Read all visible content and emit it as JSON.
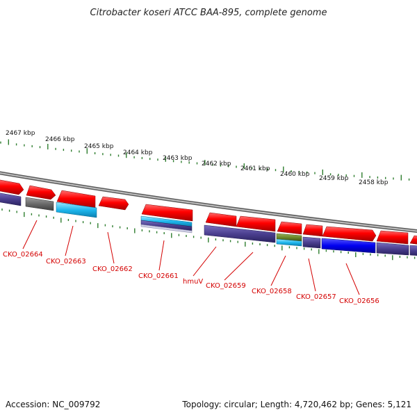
{
  "title": "Citrobacter koseri ATCC BAA-895, complete genome",
  "footer": {
    "accession": "Accession: NC_009792",
    "summary": "Topology: circular; Length: 4,720,462 bp; Genes: 5,121"
  },
  "colors": {
    "forward_gene": "#ff0000",
    "backbone": "#8c8c8c",
    "tick": "#2e7d2e",
    "label": "#d40000",
    "leader_line": "#d40000",
    "reverse_default": "#4b3f8f"
  },
  "scale_labels": [
    "2467 kbp",
    "2466 kbp",
    "2465 kbp",
    "2464 kbp",
    "2463 kbp",
    "2462 kbp",
    "2461 kbp",
    "2460 kbp",
    "2459 kbp",
    "2458 kbp"
  ],
  "gene_labels": [
    "CKO_02664",
    "CKO_02663",
    "CKO_02662",
    "CKO_02661",
    "hmuV",
    "CKO_02659",
    "CKO_02658",
    "CKO_02657",
    "CKO_02656"
  ]
}
